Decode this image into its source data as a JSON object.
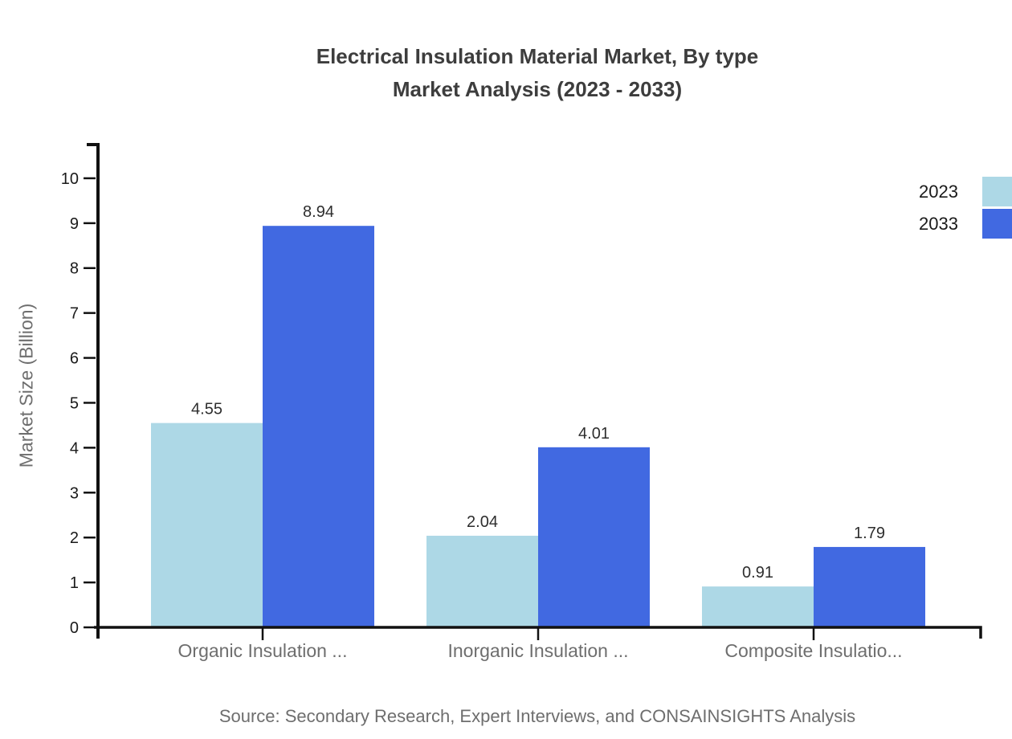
{
  "title": {
    "line1": "Electrical Insulation Material Market, By type",
    "line2": "Market Analysis (2023 - 2033)"
  },
  "source": "Source: Secondary Research, Expert Interviews, and CONSAINSIGHTS Analysis",
  "chart_data": {
    "type": "bar",
    "title": "Electrical Insulation Material Market, By type Market Analysis (2023 - 2033)",
    "categories": [
      "Organic Insulation ...",
      "Inorganic Insulation ...",
      "Composite Insulatio..."
    ],
    "series": [
      {
        "name": "2023",
        "color": "#ADD8E6",
        "values": [
          4.55,
          2.04,
          0.91
        ]
      },
      {
        "name": "2033",
        "color": "#4169E1",
        "values": [
          8.94,
          4.01,
          1.79
        ]
      }
    ],
    "xlabel": "",
    "ylabel": "Market Size (Billion)",
    "yticks": [
      0,
      1,
      2,
      3,
      4,
      5,
      6,
      7,
      8,
      9,
      10
    ],
    "ylim": [
      0,
      10.75
    ],
    "grid": false,
    "value_labels": true,
    "legend_position": "top-right"
  },
  "colors": {
    "axis": "#111111",
    "title_text": "#3d3d3d",
    "tick_text": "#1a1a1a",
    "value_text": "#2e2e2e",
    "muted_text": "#6e6e6e"
  }
}
